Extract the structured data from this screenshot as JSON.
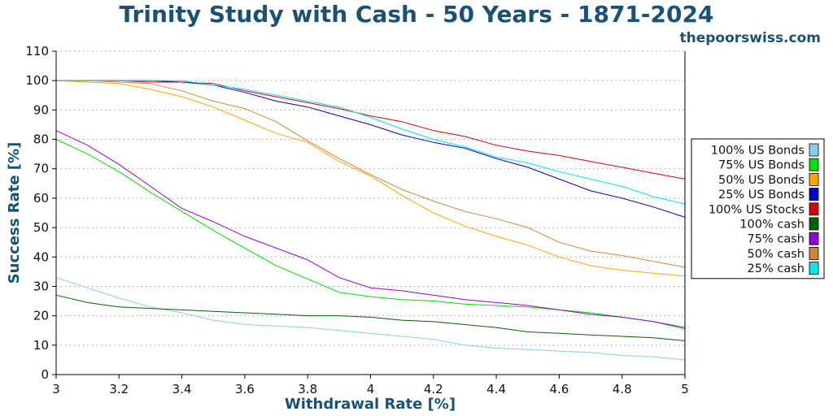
{
  "chart_data": {
    "type": "line",
    "title": "Trinity Study with Cash - 50 Years - 1871-2024",
    "source": "thepoorswiss.com",
    "xlabel": "Withdrawal Rate [%]",
    "ylabel": "Success Rate [%]",
    "xlim": [
      3,
      5
    ],
    "ylim": [
      0,
      110
    ],
    "xticks": [
      "3",
      "3.2",
      "3.4",
      "3.6",
      "3.8",
      "4",
      "4.2",
      "4.4",
      "4.6",
      "4.8",
      "5"
    ],
    "yticks": [
      "0",
      "10",
      "20",
      "30",
      "40",
      "50",
      "60",
      "70",
      "80",
      "90",
      "100",
      "110"
    ],
    "grid": "horizontal",
    "legend_position": "right",
    "x": [
      3.0,
      3.1,
      3.2,
      3.3,
      3.4,
      3.5,
      3.6,
      3.7,
      3.8,
      3.9,
      4.0,
      4.1,
      4.2,
      4.3,
      4.4,
      4.5,
      4.6,
      4.7,
      4.8,
      4.9,
      5.0
    ],
    "series": [
      {
        "name": "100% US Bonds",
        "color": "#87ceeb",
        "values": [
          33,
          29.5,
          26,
          23,
          21,
          18.5,
          17,
          16.5,
          16,
          15,
          14,
          13,
          12,
          10,
          9,
          8.5,
          8,
          7.5,
          6.5,
          6,
          5
        ]
      },
      {
        "name": "75% US Bonds",
        "color": "#00e000",
        "values": [
          80,
          75,
          69,
          62,
          55.5,
          49,
          43,
          37,
          32.5,
          28,
          26.5,
          25.5,
          25,
          24,
          23.5,
          23,
          22,
          21,
          19.5,
          18,
          15.5
        ]
      },
      {
        "name": "50% US Bonds",
        "color": "#ffa500",
        "values": [
          100,
          99.5,
          99,
          97,
          94.5,
          91,
          86.5,
          82,
          79,
          72.5,
          67.5,
          61,
          55,
          50.5,
          47,
          44,
          40,
          37,
          35.5,
          34.5,
          33.5
        ]
      },
      {
        "name": "25% US Bonds",
        "color": "#0000cd",
        "values": [
          100,
          100,
          100,
          100,
          99.5,
          98.5,
          96,
          93,
          91,
          88,
          85,
          81.5,
          79,
          77,
          73.5,
          70.5,
          66.5,
          62.5,
          60,
          57,
          53.5
        ]
      },
      {
        "name": "100% US Stocks",
        "color": "#dd0000",
        "values": [
          100,
          100,
          100,
          99.5,
          99.5,
          99,
          96.5,
          94.5,
          92.5,
          90.5,
          88,
          86,
          83,
          81,
          78,
          76,
          74.5,
          72.5,
          70.5,
          68.5,
          66.5
        ]
      },
      {
        "name": "100% cash",
        "color": "#006400",
        "values": [
          27,
          24.5,
          23,
          22.5,
          22,
          21.5,
          21,
          20.5,
          20,
          20,
          19.5,
          18.5,
          18,
          17,
          16,
          14.5,
          14,
          13.5,
          13,
          12.5,
          11.5
        ]
      },
      {
        "name": "75% cash",
        "color": "#9400d3",
        "values": [
          83,
          78,
          71.5,
          64,
          56.5,
          52,
          47,
          43,
          39,
          33,
          29.5,
          28.5,
          27,
          25.5,
          24.5,
          23.5,
          22,
          20.5,
          19.5,
          18,
          16
        ]
      },
      {
        "name": "50% cash",
        "color": "#cd853f",
        "values": [
          100,
          100,
          99.5,
          99,
          96.5,
          93,
          90.5,
          86,
          79.5,
          73.5,
          68,
          63,
          59,
          55.5,
          53,
          50,
          45,
          42,
          40.5,
          38.5,
          36.5
        ]
      },
      {
        "name": "25% cash",
        "color": "#00e5ee",
        "values": [
          100,
          100,
          100,
          100,
          100,
          98.5,
          97,
          95,
          93,
          91,
          87.5,
          83.5,
          80,
          77.5,
          74,
          72,
          69,
          66.5,
          64,
          60.5,
          58
        ]
      }
    ]
  }
}
